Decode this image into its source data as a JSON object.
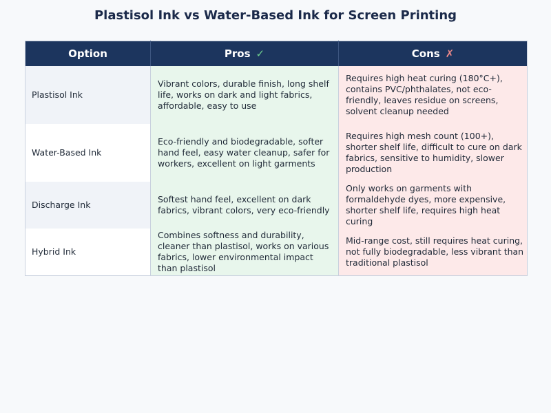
{
  "title": "Plastisol Ink vs Water-Based Ink for Screen Printing",
  "headers": {
    "option": "Option",
    "pros": "Pros",
    "pros_icon": "✓",
    "cons": "Cons",
    "cons_icon": "✗"
  },
  "colors": {
    "header_bg": "#1c355e",
    "pros_bg": "#e8f6ec",
    "cons_bg": "#fde9e9",
    "check": "#6fd18f",
    "cross": "#f08a8a"
  },
  "rows": [
    {
      "option": "Plastisol Ink",
      "pros": "Vibrant colors, durable finish, long shelf life, works on dark and light fabrics, affordable, easy to use",
      "cons": "Requires high heat curing (180°C+), contains PVC/phthalates, not eco-friendly, leaves residue on screens, solvent cleanup needed"
    },
    {
      "option": "Water-Based Ink",
      "pros": "Eco-friendly and biodegradable, softer hand feel, easy water cleanup, safer for workers, excellent on light garments",
      "cons": "Requires high mesh count (100+), shorter shelf life, difficult to cure on dark fabrics, sensitive to humidity, slower production"
    },
    {
      "option": "Discharge Ink",
      "pros": "Softest hand feel, excellent on dark fabrics, vibrant colors, very eco-friendly",
      "cons": "Only works on garments with formaldehyde dyes, more expensive, shorter shelf life, requires high heat curing"
    },
    {
      "option": "Hybrid Ink",
      "pros": "Combines softness and durability, cleaner than plastisol, works on various fabrics, lower environmental impact than plastisol",
      "cons": "Mid-range cost, still requires heat curing, not fully biodegradable, less vibrant than traditional plastisol"
    }
  ]
}
